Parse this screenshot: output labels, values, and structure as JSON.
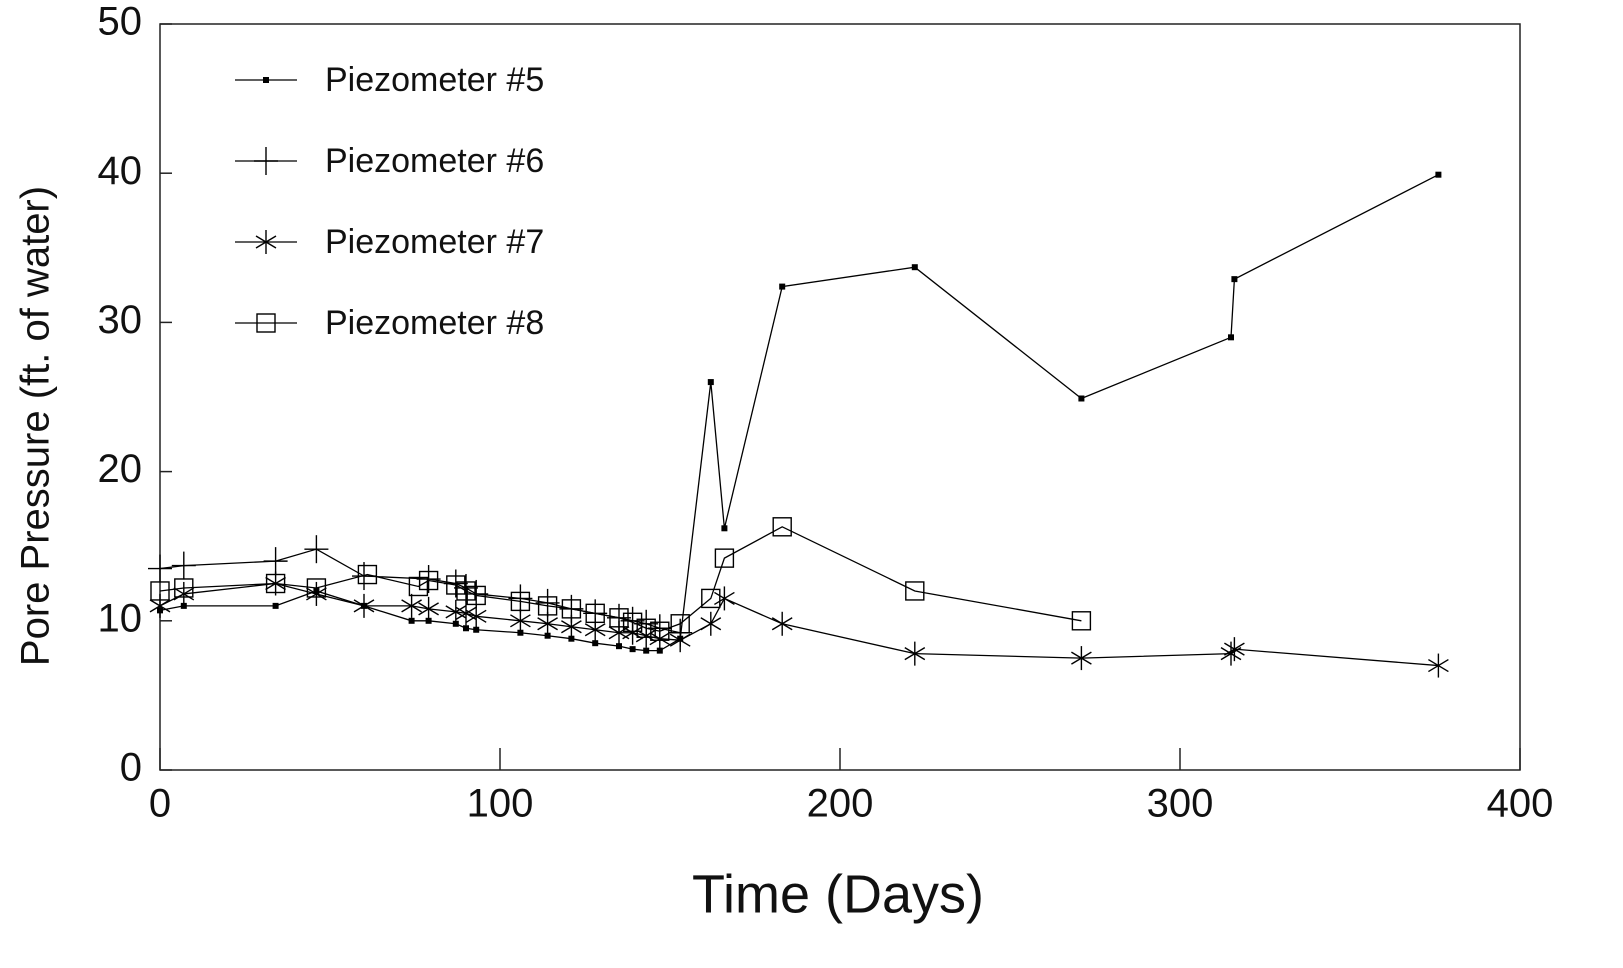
{
  "chart_data": {
    "type": "line",
    "xlabel": "Time (Days)",
    "ylabel": "Pore Pressure (ft. of water)",
    "xlim": [
      0,
      400
    ],
    "xticks": [
      0,
      100,
      200,
      300,
      400
    ],
    "ylim": [
      0,
      50
    ],
    "yticks": [
      0,
      10,
      20,
      30,
      40,
      50
    ],
    "legend": "upper left",
    "series": [
      {
        "name": "Piezometer #5",
        "color": "#000000",
        "marker": "small-square",
        "x": [
          0,
          7,
          34,
          46,
          60,
          74,
          79,
          87,
          90,
          93,
          106,
          114,
          121,
          128,
          135,
          139,
          143,
          147,
          153,
          162,
          166,
          183,
          222,
          271,
          315,
          316,
          376
        ],
        "values": [
          10.7,
          11,
          11,
          12,
          11,
          10,
          10,
          9.8,
          9.5,
          9.4,
          9.2,
          9,
          8.8,
          8.5,
          8.3,
          8.1,
          8,
          8,
          8.8,
          26,
          16.2,
          32.4,
          33.7,
          24.9,
          29,
          32.9,
          39.9
        ]
      },
      {
        "name": "Piezometer #6",
        "color": "#000000",
        "marker": "plus",
        "x": [
          0,
          7,
          34,
          46,
          60,
          79,
          87,
          90,
          93,
          106,
          114,
          121,
          128,
          135,
          139,
          143,
          147,
          153
        ],
        "values": [
          13.5,
          13.7,
          14,
          14.8,
          13,
          12.8,
          12.5,
          12.2,
          11.8,
          11.5,
          11.2,
          10.8,
          10.5,
          10.2,
          10,
          9.8,
          9.5,
          9.2
        ]
      },
      {
        "name": "Piezometer #7",
        "color": "#000000",
        "marker": "asterisk",
        "x": [
          0,
          7,
          34,
          46,
          60,
          74,
          79,
          87,
          90,
          93,
          106,
          114,
          121,
          128,
          135,
          139,
          143,
          147,
          153,
          162,
          166,
          183,
          222,
          271,
          315,
          316,
          376
        ],
        "values": [
          11,
          11.8,
          12.5,
          11.8,
          11,
          11,
          10.8,
          10.6,
          10.5,
          10.3,
          10,
          9.8,
          9.6,
          9.4,
          9.2,
          9.2,
          9,
          8.8,
          8.7,
          9.8,
          11.5,
          9.8,
          7.8,
          7.5,
          7.8,
          8.1,
          7
        ]
      },
      {
        "name": "Piezometer #8",
        "color": "#000000",
        "marker": "open-square",
        "x": [
          0,
          7,
          34,
          46,
          61,
          76,
          79,
          87,
          90,
          93,
          106,
          114,
          121,
          128,
          135,
          139,
          143,
          147,
          153,
          162,
          166,
          183,
          222,
          271
        ],
        "values": [
          12,
          12.2,
          12.5,
          12.2,
          13.1,
          12.3,
          12.7,
          12.4,
          12,
          11.7,
          11.3,
          11,
          10.8,
          10.5,
          10.2,
          9.9,
          9.5,
          9.3,
          9.8,
          11.5,
          14.2,
          16.3,
          12,
          10
        ]
      }
    ]
  }
}
